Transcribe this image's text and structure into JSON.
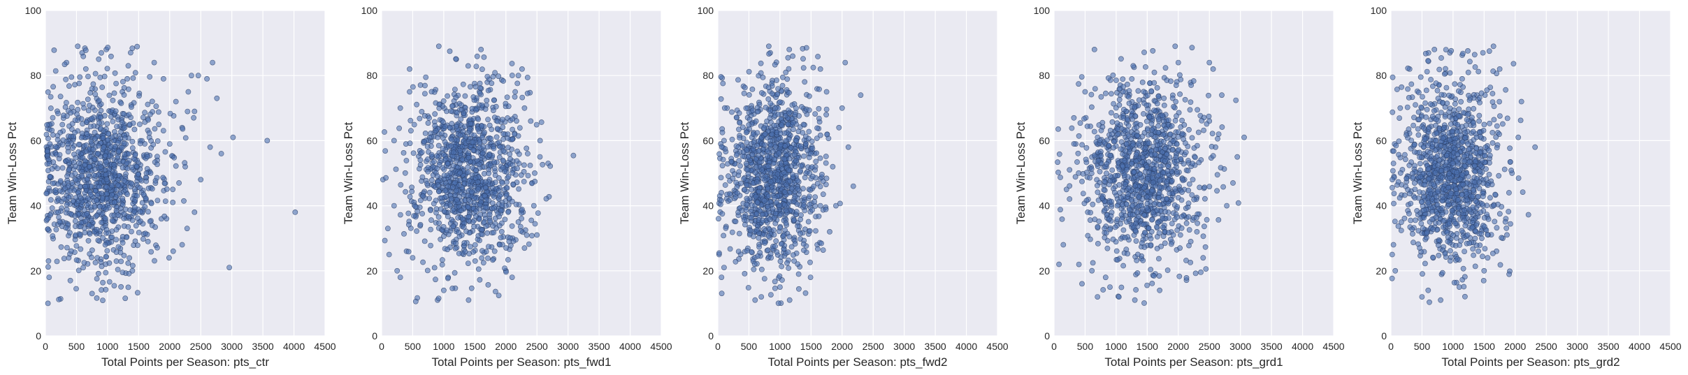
{
  "figure": {
    "grid": true,
    "plot_background": "#EAEAF2",
    "grid_color": "#FFFFFF",
    "point_color": "#4C72B0",
    "point_edge_color": "#2B3F66",
    "point_opacity": 0.6
  },
  "chart_data": [
    {
      "type": "scatter",
      "xlabel": "Total Points per Season: pts_ctr",
      "ylabel": "Team Win-Loss Pct",
      "xlim": [
        0,
        4500
      ],
      "ylim": [
        0,
        100
      ],
      "xticks": [
        "0",
        "500",
        "1000",
        "1500",
        "2000",
        "2500",
        "3000",
        "3500",
        "4000",
        "4500"
      ],
      "yticks": [
        "0",
        "20",
        "40",
        "60",
        "80",
        "100"
      ],
      "x_mean": 900,
      "x_sd": 480,
      "y_mean": 50,
      "y_sd": 14,
      "n_points": 1100,
      "points": [
        {
          "x": 4020,
          "y": 38
        },
        {
          "x": 3570,
          "y": 60
        },
        {
          "x": 3020,
          "y": 61
        },
        {
          "x": 2960,
          "y": 21
        },
        {
          "x": 2830,
          "y": 56
        },
        {
          "x": 2690,
          "y": 84
        },
        {
          "x": 2460,
          "y": 80
        },
        {
          "x": 2350,
          "y": 80
        },
        {
          "x": 2400,
          "y": 38
        },
        {
          "x": 2280,
          "y": 33
        },
        {
          "x": 1990,
          "y": 24
        },
        {
          "x": 2050,
          "y": 45
        },
        {
          "x": 2150,
          "y": 47
        },
        {
          "x": 2500,
          "y": 48
        },
        {
          "x": 2650,
          "y": 58
        },
        {
          "x": 2760,
          "y": 73
        },
        {
          "x": 2300,
          "y": 75
        },
        {
          "x": 2200,
          "y": 64
        },
        {
          "x": 1900,
          "y": 79
        },
        {
          "x": 2100,
          "y": 72
        },
        {
          "x": 1750,
          "y": 84
        },
        {
          "x": 980,
          "y": 88
        },
        {
          "x": 520,
          "y": 89
        },
        {
          "x": 340,
          "y": 84
        },
        {
          "x": 40,
          "y": 10
        },
        {
          "x": 60,
          "y": 18
        },
        {
          "x": 50,
          "y": 23
        },
        {
          "x": 400,
          "y": 17
        },
        {
          "x": 750,
          "y": 13
        },
        {
          "x": 1400,
          "y": 20
        },
        {
          "x": 1700,
          "y": 41
        },
        {
          "x": 1800,
          "y": 54
        },
        {
          "x": 2000,
          "y": 59
        },
        {
          "x": 2250,
          "y": 52
        },
        {
          "x": 2400,
          "y": 69
        },
        {
          "x": 2600,
          "y": 79
        },
        {
          "x": 2200,
          "y": 28
        },
        {
          "x": 1950,
          "y": 36
        },
        {
          "x": 1650,
          "y": 29
        },
        {
          "x": 2050,
          "y": 41
        }
      ]
    },
    {
      "type": "scatter",
      "xlabel": "Total Points per Season: pts_fwd1",
      "ylabel": "Team Win-Loss Pct",
      "xlim": [
        0,
        4500
      ],
      "ylim": [
        0,
        100
      ],
      "xticks": [
        "0",
        "500",
        "1000",
        "1500",
        "2000",
        "2500",
        "3000",
        "3500",
        "4000",
        "4500"
      ],
      "yticks": [
        "0",
        "20",
        "40",
        "60",
        "80",
        "100"
      ],
      "x_mean": 1400,
      "x_sd": 460,
      "y_mean": 50,
      "y_sd": 14,
      "n_points": 1100,
      "points": [
        {
          "x": 2680,
          "y": 53
        },
        {
          "x": 2500,
          "y": 31
        },
        {
          "x": 2450,
          "y": 40
        },
        {
          "x": 2420,
          "y": 47
        },
        {
          "x": 2350,
          "y": 56
        },
        {
          "x": 2260,
          "y": 82
        },
        {
          "x": 2200,
          "y": 80
        },
        {
          "x": 2150,
          "y": 75
        },
        {
          "x": 920,
          "y": 89
        },
        {
          "x": 1600,
          "y": 88
        },
        {
          "x": 1200,
          "y": 85
        },
        {
          "x": 20,
          "y": 48
        },
        {
          "x": 100,
          "y": 33
        },
        {
          "x": 120,
          "y": 25
        },
        {
          "x": 200,
          "y": 40
        },
        {
          "x": 250,
          "y": 20
        },
        {
          "x": 300,
          "y": 18
        },
        {
          "x": 400,
          "y": 26
        },
        {
          "x": 200,
          "y": 60
        },
        {
          "x": 300,
          "y": 70
        },
        {
          "x": 450,
          "y": 75
        },
        {
          "x": 450,
          "y": 82
        },
        {
          "x": 900,
          "y": 11
        },
        {
          "x": 1400,
          "y": 11
        },
        {
          "x": 1000,
          "y": 14
        },
        {
          "x": 2100,
          "y": 18
        },
        {
          "x": 2300,
          "y": 27
        },
        {
          "x": 2200,
          "y": 35
        },
        {
          "x": 2000,
          "y": 20
        },
        {
          "x": 2400,
          "y": 66
        },
        {
          "x": 2550,
          "y": 60
        },
        {
          "x": 2300,
          "y": 70
        }
      ]
    },
    {
      "type": "scatter",
      "xlabel": "Total Points per Season: pts_fwd2",
      "ylabel": "Team Win-Loss Pct",
      "xlim": [
        0,
        4500
      ],
      "ylim": [
        0,
        100
      ],
      "xticks": [
        "0",
        "500",
        "1000",
        "1500",
        "2000",
        "2500",
        "3000",
        "3500",
        "4000",
        "4500"
      ],
      "yticks": [
        "0",
        "20",
        "40",
        "60",
        "80",
        "100"
      ],
      "x_mean": 900,
      "x_sd": 380,
      "y_mean": 50,
      "y_sd": 14,
      "n_points": 1100,
      "points": [
        {
          "x": 2300,
          "y": 74
        },
        {
          "x": 2050,
          "y": 84
        },
        {
          "x": 2180,
          "y": 46
        },
        {
          "x": 2000,
          "y": 70
        },
        {
          "x": 1950,
          "y": 64
        },
        {
          "x": 2100,
          "y": 58
        },
        {
          "x": 1850,
          "y": 52
        },
        {
          "x": 1900,
          "y": 40
        },
        {
          "x": 1800,
          "y": 32
        },
        {
          "x": 1750,
          "y": 75
        },
        {
          "x": 1650,
          "y": 82
        },
        {
          "x": 820,
          "y": 89
        },
        {
          "x": 1150,
          "y": 88
        },
        {
          "x": 20,
          "y": 25
        },
        {
          "x": 10,
          "y": 36
        },
        {
          "x": 30,
          "y": 43
        },
        {
          "x": 60,
          "y": 18
        },
        {
          "x": 100,
          "y": 60
        },
        {
          "x": 150,
          "y": 70
        },
        {
          "x": 100,
          "y": 21
        },
        {
          "x": 600,
          "y": 11
        },
        {
          "x": 700,
          "y": 12
        },
        {
          "x": 1000,
          "y": 15
        },
        {
          "x": 1300,
          "y": 19
        },
        {
          "x": 1600,
          "y": 28
        },
        {
          "x": 1650,
          "y": 40
        }
      ]
    },
    {
      "type": "scatter",
      "xlabel": "Total Points per Season: pts_grd1",
      "ylabel": "Team Win-Loss Pct",
      "xlim": [
        0,
        4500
      ],
      "ylim": [
        0,
        100
      ],
      "xticks": [
        "0",
        "500",
        "1000",
        "1500",
        "2000",
        "2500",
        "3000",
        "3500",
        "4000",
        "4500"
      ],
      "yticks": [
        "0",
        "20",
        "40",
        "60",
        "80",
        "100"
      ],
      "x_mean": 1400,
      "x_sd": 480,
      "y_mean": 50,
      "y_sd": 14,
      "n_points": 1100,
      "points": [
        {
          "x": 3060,
          "y": 61
        },
        {
          "x": 2950,
          "y": 55
        },
        {
          "x": 2880,
          "y": 47
        },
        {
          "x": 2780,
          "y": 40
        },
        {
          "x": 2700,
          "y": 74
        },
        {
          "x": 2600,
          "y": 58
        },
        {
          "x": 2560,
          "y": 82
        },
        {
          "x": 2500,
          "y": 84
        },
        {
          "x": 2400,
          "y": 24
        },
        {
          "x": 2300,
          "y": 32
        },
        {
          "x": 2200,
          "y": 29
        },
        {
          "x": 2000,
          "y": 84
        },
        {
          "x": 1950,
          "y": 89
        },
        {
          "x": 650,
          "y": 88
        },
        {
          "x": 80,
          "y": 22
        },
        {
          "x": 150,
          "y": 28
        },
        {
          "x": 200,
          "y": 45
        },
        {
          "x": 250,
          "y": 51
        },
        {
          "x": 350,
          "y": 59
        },
        {
          "x": 320,
          "y": 67
        },
        {
          "x": 500,
          "y": 75
        },
        {
          "x": 450,
          "y": 16
        },
        {
          "x": 700,
          "y": 12
        },
        {
          "x": 900,
          "y": 15
        },
        {
          "x": 1300,
          "y": 11
        },
        {
          "x": 1700,
          "y": 14
        },
        {
          "x": 2500,
          "y": 66
        },
        {
          "x": 2650,
          "y": 62
        }
      ]
    },
    {
      "type": "scatter",
      "xlabel": "Total Points per Season: pts_grd2",
      "ylabel": "Team Win-Loss Pct",
      "xlim": [
        0,
        4500
      ],
      "ylim": [
        0,
        100
      ],
      "xticks": [
        "0",
        "500",
        "1000",
        "1500",
        "2000",
        "2500",
        "3000",
        "3500",
        "4000",
        "4500"
      ],
      "yticks": [
        "0",
        "20",
        "40",
        "60",
        "80",
        "100"
      ],
      "x_mean": 950,
      "x_sd": 400,
      "y_mean": 50,
      "y_sd": 14,
      "n_points": 1100,
      "points": [
        {
          "x": 2320,
          "y": 58
        },
        {
          "x": 2100,
          "y": 72
        },
        {
          "x": 2050,
          "y": 61
        },
        {
          "x": 1950,
          "y": 50
        },
        {
          "x": 1900,
          "y": 44
        },
        {
          "x": 1850,
          "y": 36
        },
        {
          "x": 1800,
          "y": 30
        },
        {
          "x": 1750,
          "y": 82
        },
        {
          "x": 1650,
          "y": 89
        },
        {
          "x": 1480,
          "y": 87
        },
        {
          "x": 950,
          "y": 87
        },
        {
          "x": 700,
          "y": 88
        },
        {
          "x": 20,
          "y": 25
        },
        {
          "x": 40,
          "y": 28
        },
        {
          "x": 70,
          "y": 20
        },
        {
          "x": 40,
          "y": 53
        },
        {
          "x": 60,
          "y": 59
        },
        {
          "x": 150,
          "y": 70
        },
        {
          "x": 300,
          "y": 82
        },
        {
          "x": 500,
          "y": 12
        },
        {
          "x": 600,
          "y": 14
        },
        {
          "x": 800,
          "y": 11
        },
        {
          "x": 1100,
          "y": 15
        },
        {
          "x": 1500,
          "y": 20
        },
        {
          "x": 1700,
          "y": 26
        }
      ]
    }
  ]
}
